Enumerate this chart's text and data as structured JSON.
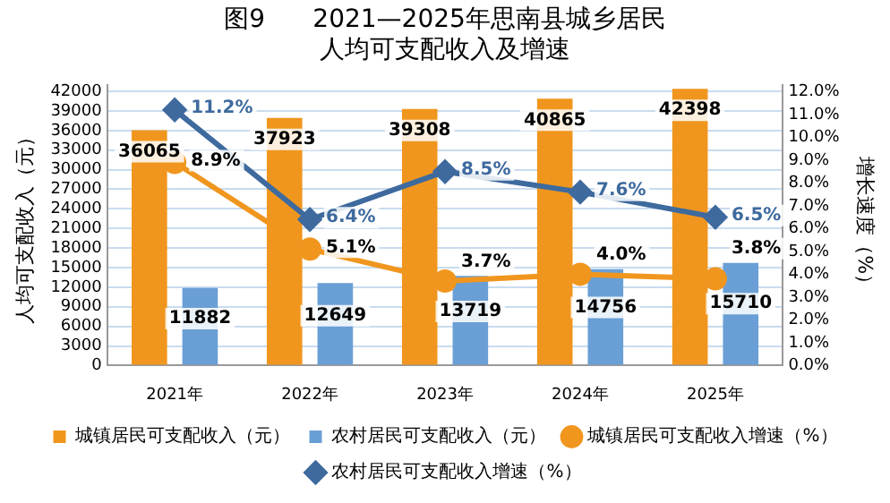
{
  "chart_data": {
    "type": "bar",
    "title": "图9      2021—2025年思南县城乡居民人均可支配收入及增速",
    "ylabel": "人均可支配收入（元）",
    "y2label": "增长速度（%）",
    "categories": [
      "2021年",
      "2022年",
      "2023年",
      "2024年",
      "2025年"
    ],
    "series": [
      {
        "name": "城镇居民可支配收入（元）",
        "color": "#f0961e",
        "values": [
          36065,
          37923,
          39308,
          40865,
          42398
        ],
        "value_labels": [
          "36065",
          "37923",
          "39308",
          "40865",
          "42398"
        ]
      },
      {
        "name": "农村居民可支配收入（元）",
        "color": "#6a9fd6",
        "values": [
          11882,
          12649,
          13719,
          14756,
          15710
        ],
        "value_labels": [
          "11882",
          "12649",
          "13719",
          "14756",
          "15710"
        ]
      },
      {
        "name": "城镇居民可支配收入增速（%）",
        "type": "line",
        "axis": "y2",
        "color": "#f0961e",
        "marker": "circle",
        "values": [
          8.9,
          5.1,
          3.7,
          4.0,
          3.8
        ],
        "value_labels": [
          "8.9%",
          "5.1%",
          "3.7%",
          "4.0%",
          "3.8%"
        ]
      },
      {
        "name": "农村居民可支配收入增速（%）",
        "type": "line",
        "axis": "y2",
        "color": "#3e6a9e",
        "marker": "diamond",
        "values": [
          11.2,
          6.4,
          8.5,
          7.6,
          6.5
        ],
        "value_labels": [
          "11.2%",
          "6.4%",
          "8.5%",
          "7.6%",
          "6.5%"
        ]
      }
    ],
    "ylim": [
      0,
      43000
    ],
    "yticks": [
      0,
      3000,
      6000,
      9000,
      12000,
      15000,
      18000,
      21000,
      24000,
      27000,
      30000,
      33000,
      36000,
      39000,
      42000
    ],
    "y2lim": [
      0,
      12.3
    ],
    "y2ticks": [
      {
        "value": 0,
        "label": "0.0%"
      },
      {
        "value": 1,
        "label": "1.0%"
      },
      {
        "value": 2,
        "label": "2.0%"
      },
      {
        "value": 3,
        "label": "3.0%"
      },
      {
        "value": 4,
        "label": "4.0%"
      },
      {
        "value": 5,
        "label": "5.0%"
      },
      {
        "value": 6,
        "label": "6.0%"
      },
      {
        "value": 7,
        "label": "7.0%"
      },
      {
        "value": 8,
        "label": "8.0%"
      },
      {
        "value": 9,
        "label": "9.0%"
      },
      {
        "value": 10,
        "label": "10.0%"
      },
      {
        "value": 11,
        "label": "11.0%"
      },
      {
        "value": 12,
        "label": "12.0%"
      }
    ],
    "grid": "y",
    "legend": "bottom"
  }
}
